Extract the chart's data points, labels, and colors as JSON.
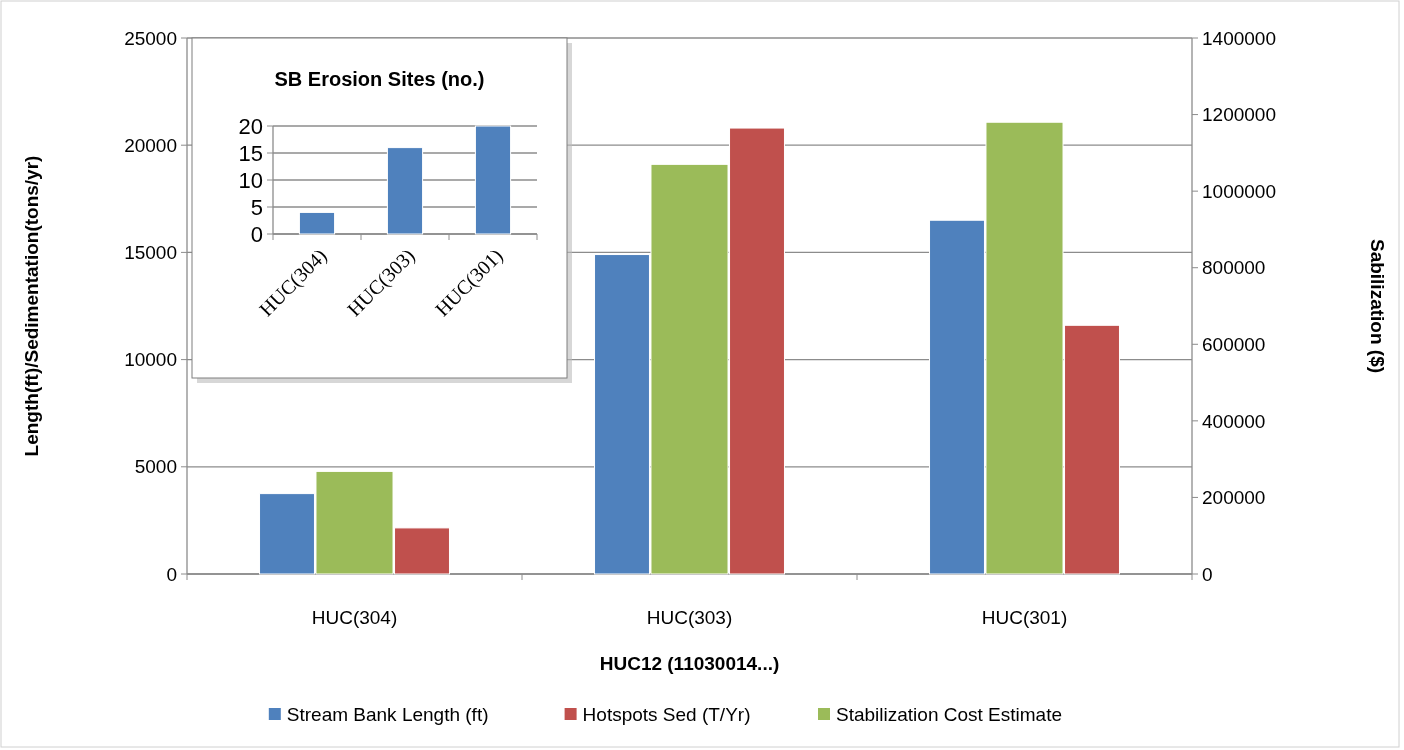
{
  "chart_data": [
    {
      "type": "bar",
      "xlabel": "HUC12 (11030014...)",
      "ylabel": "Length(ft)/Sedimentation(tons/yr)",
      "y2label": "Sabilization ($)",
      "categories": [
        "HUC(304)",
        "HUC(303)",
        "HUC(301)"
      ],
      "series": [
        {
          "name": "Stream Bank Length (ft)",
          "color": "#4f81bd",
          "values": [
            3750,
            14900,
            16500
          ]
        },
        {
          "name": "Hotspots Sed (T/Yr)",
          "color": "#c0504d",
          "values": [
            2150,
            20800,
            11600
          ]
        },
        {
          "name": "Stabilization Cost Estimate",
          "color": "#9bbb59",
          "values": [
            268000,
            1070000,
            1180000
          ],
          "axis": "y2"
        }
      ],
      "ylim": [
        0,
        25000
      ],
      "yticks": [
        0,
        5000,
        10000,
        15000,
        20000,
        25000
      ],
      "y2lim": [
        0,
        1400000
      ],
      "y2ticks": [
        0,
        200000,
        400000,
        600000,
        800000,
        1000000,
        1200000,
        1400000
      ],
      "grid": "y",
      "legend": "bottom"
    },
    {
      "type": "bar",
      "title": "SB Erosion Sites (no.)",
      "categories": [
        "HUC(304)",
        "HUC(303)",
        "HUC(301)"
      ],
      "values": [
        4,
        16,
        20
      ],
      "color": "#4f81bd",
      "ylim": [
        0,
        20
      ],
      "yticks": [
        0,
        5,
        10,
        15,
        20
      ],
      "grid": "y"
    }
  ]
}
